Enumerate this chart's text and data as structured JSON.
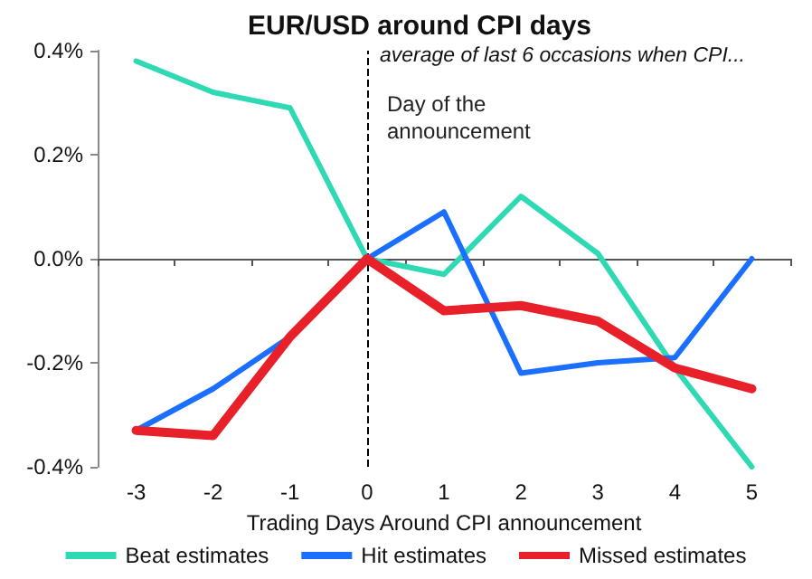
{
  "chart_data": {
    "type": "line",
    "title": "EUR/USD around CPI days",
    "subtitle": "average of last 6 occasions when CPI...",
    "xlabel": "Trading Days Around CPI announcement",
    "categories": [
      "-3",
      "-2",
      "-1",
      "0",
      "1",
      "2",
      "3",
      "4",
      "5"
    ],
    "series": [
      {
        "name": "Beat estimates",
        "color": "#2ed9b4",
        "values": [
          0.38,
          0.32,
          0.29,
          0,
          -0.03,
          0.12,
          0.01,
          -0.21,
          -0.4
        ]
      },
      {
        "name": "Hit estimates",
        "color": "#1a6fff",
        "values": [
          -0.33,
          -0.25,
          -0.15,
          0,
          0.09,
          -0.22,
          -0.2,
          -0.19,
          0
        ]
      },
      {
        "name": "Missed estimates",
        "color": "#e8202a",
        "values": [
          -0.33,
          -0.34,
          -0.15,
          0,
          -0.1,
          -0.09,
          -0.12,
          -0.21,
          -0.25
        ]
      }
    ],
    "ylim": [
      -0.4,
      0.4
    ],
    "yticks": [
      {
        "value": -0.4,
        "label": "-0.4%"
      },
      {
        "value": -0.2,
        "label": "-0.2%"
      },
      {
        "value": 0,
        "label": "0.0%"
      },
      {
        "value": 0.2,
        "label": "0.2%"
      },
      {
        "value": 0.4,
        "label": "0.4%"
      }
    ],
    "ref_lines": [
      {
        "axis": "x",
        "value": "0",
        "label": "Day of the announcement",
        "color": "#000000",
        "line_style": "dashed"
      }
    ],
    "grid": false,
    "legend": "bottom",
    "marker": "none",
    "line_style": "solid"
  }
}
